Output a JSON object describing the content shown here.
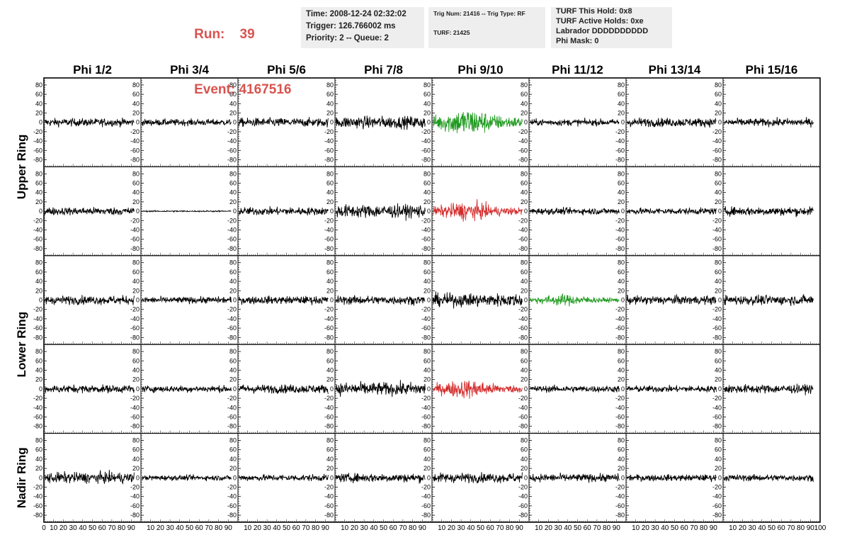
{
  "run_info": {
    "run_label": "Run:",
    "run_value": "39",
    "event_label": "Event:",
    "event_value": "4167516"
  },
  "time_box": {
    "time": "Time: 2008-12-24 02:32:02",
    "trigger": "Trigger: 126.766002 ms",
    "priority": "Priority: 2 -- Queue: 2"
  },
  "trig_box": {
    "trig": "Trig Num: 21416 -- Trig Type: RF",
    "turf": "TURF: 21425"
  },
  "turf_box": {
    "hold": "TURF This Hold: 0x8",
    "active": "TURF Active Holds: 0xe",
    "labrador": "Labrador DDDDDDDDDD",
    "phimask": "Phi Mask: 0"
  },
  "colors": {
    "trace": "#000000",
    "trigger_green": "#1f9a1f",
    "trigger_red": "#d32a2a",
    "header_red": "#d9534f",
    "box_bg": "#eeeeee"
  },
  "chart_data": {
    "type": "line",
    "title": "",
    "columns": [
      "Phi 1/2",
      "Phi 3/4",
      "Phi 5/6",
      "Phi 7/8",
      "Phi 9/10",
      "Phi 11/12",
      "Phi 13/14",
      "Phi 15/16"
    ],
    "ring_labels": [
      "Upper Ring",
      "Lower Ring",
      "Nadir Ring"
    ],
    "rows": 5,
    "ring_row_spans": [
      [
        0,
        1
      ],
      [
        2,
        3
      ],
      [
        4,
        4
      ]
    ],
    "ylim": [
      -95,
      95
    ],
    "ytick_labels": [
      "80",
      "60",
      "40",
      "20",
      "0",
      "-20",
      "-40",
      "-60",
      "-80"
    ],
    "xlim": [
      0,
      100
    ],
    "xtick_labels": [
      "0",
      "10",
      "20",
      "30",
      "40",
      "50",
      "60",
      "70",
      "80",
      "90",
      "100"
    ],
    "samples_per_trace": 260,
    "amplitude_peak": [
      [
        18,
        15,
        20,
        28,
        45,
        15,
        20,
        18
      ],
      [
        18,
        3,
        18,
        30,
        30,
        15,
        15,
        20
      ],
      [
        20,
        15,
        18,
        20,
        30,
        18,
        20,
        22
      ],
      [
        18,
        15,
        20,
        30,
        30,
        15,
        15,
        20
      ],
      [
        25,
        12,
        15,
        20,
        22,
        18,
        15,
        15
      ]
    ],
    "highlighted": [
      {
        "row": 0,
        "col": 4,
        "color": "green"
      },
      {
        "row": 1,
        "col": 4,
        "color": "red"
      },
      {
        "row": 2,
        "col": 5,
        "color": "green"
      },
      {
        "row": 3,
        "col": 4,
        "color": "red"
      }
    ]
  }
}
